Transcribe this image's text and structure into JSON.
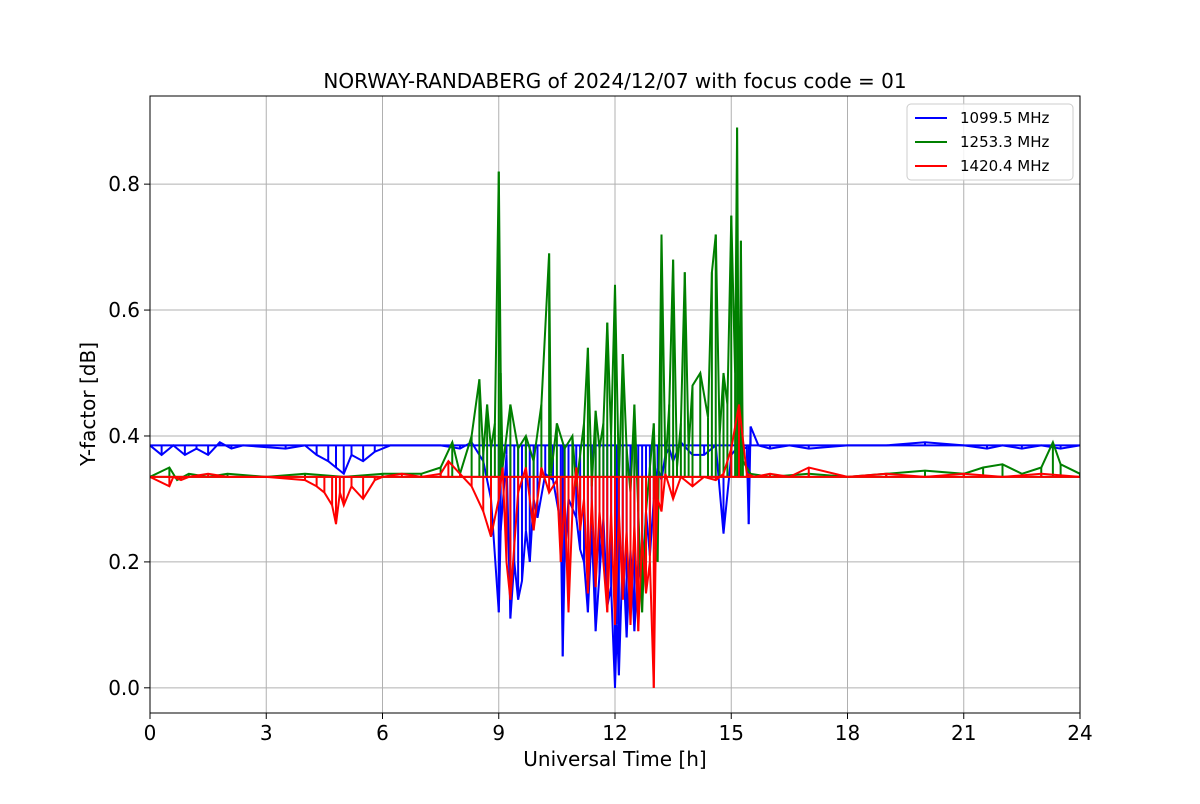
{
  "chart_data": {
    "type": "line",
    "title": "NORWAY-RANDABERG of 2024/12/07 with focus code = 01",
    "xlabel": "Universal Time [h]",
    "ylabel": "Y-factor [dB]",
    "xlim": [
      0,
      24
    ],
    "ylim": [
      -0.04,
      0.94
    ],
    "xticks": [
      0,
      3,
      6,
      9,
      12,
      15,
      18,
      21,
      24
    ],
    "yticks": [
      0.0,
      0.2,
      0.4,
      0.6,
      0.8
    ],
    "xtick_labels": [
      "0",
      "3",
      "6",
      "9",
      "12",
      "15",
      "18",
      "21",
      "24"
    ],
    "ytick_labels": [
      "0.0",
      "0.2",
      "0.4",
      "0.6",
      "0.8"
    ],
    "grid": true,
    "legend_position": "top-right",
    "series": [
      {
        "name": "1099.5 MHz",
        "color": "#0000ff",
        "baseline": 0.385,
        "x": [
          0,
          0.3,
          0.6,
          0.9,
          1.2,
          1.5,
          1.8,
          2.1,
          2.4,
          3.5,
          4.0,
          4.3,
          4.6,
          4.8,
          5.0,
          5.2,
          5.5,
          5.8,
          6.2,
          7.5,
          8.0,
          8.3,
          8.6,
          8.8,
          9.0,
          9.05,
          9.2,
          9.3,
          9.4,
          9.5,
          9.6,
          9.7,
          9.8,
          9.9,
          10.0,
          10.2,
          10.4,
          10.6,
          10.65,
          10.7,
          10.8,
          11.0,
          11.1,
          11.2,
          11.3,
          11.4,
          11.5,
          11.6,
          11.7,
          11.8,
          11.9,
          12.0,
          12.05,
          12.1,
          12.2,
          12.3,
          12.4,
          12.5,
          12.6,
          12.7,
          12.8,
          12.9,
          13.0,
          13.1,
          13.2,
          13.3,
          13.4,
          13.5,
          13.7,
          14.0,
          14.3,
          14.6,
          14.8,
          15.0,
          15.2,
          15.4,
          15.45,
          15.5,
          15.7,
          16.0,
          16.5,
          17.0,
          18.0,
          19.0,
          20.0,
          21.0,
          21.6,
          22.0,
          22.5,
          23.0,
          23.5,
          24.0
        ],
        "y": [
          0.385,
          0.37,
          0.385,
          0.37,
          0.38,
          0.37,
          0.39,
          0.38,
          0.385,
          0.38,
          0.385,
          0.37,
          0.36,
          0.35,
          0.34,
          0.37,
          0.36,
          0.375,
          0.385,
          0.385,
          0.38,
          0.39,
          0.36,
          0.3,
          0.12,
          0.25,
          0.37,
          0.11,
          0.2,
          0.14,
          0.17,
          0.25,
          0.2,
          0.3,
          0.27,
          0.34,
          0.33,
          0.26,
          0.05,
          0.2,
          0.3,
          0.27,
          0.22,
          0.2,
          0.12,
          0.25,
          0.09,
          0.18,
          0.27,
          0.13,
          0.16,
          0.0,
          0.1,
          0.02,
          0.22,
          0.08,
          0.22,
          0.09,
          0.2,
          0.15,
          0.28,
          0.21,
          0.3,
          0.35,
          0.33,
          0.37,
          0.38,
          0.36,
          0.39,
          0.37,
          0.37,
          0.385,
          0.245,
          0.37,
          0.385,
          0.38,
          0.26,
          0.415,
          0.385,
          0.38,
          0.385,
          0.38,
          0.385,
          0.385,
          0.39,
          0.385,
          0.38,
          0.385,
          0.38,
          0.385,
          0.38,
          0.385
        ]
      },
      {
        "name": "1253.3 MHz",
        "color": "#008000",
        "baseline": 0.335,
        "x": [
          0,
          0.5,
          0.7,
          1.0,
          1.5,
          2.0,
          3.0,
          4.0,
          5.0,
          6.0,
          7.0,
          7.5,
          7.8,
          8.0,
          8.3,
          8.5,
          8.6,
          8.7,
          8.8,
          8.9,
          9.0,
          9.05,
          9.1,
          9.3,
          9.5,
          9.7,
          9.9,
          10.1,
          10.3,
          10.35,
          10.5,
          10.7,
          10.9,
          11.0,
          11.2,
          11.3,
          11.4,
          11.5,
          11.6,
          11.7,
          11.8,
          11.9,
          12.0,
          12.1,
          12.2,
          12.3,
          12.4,
          12.5,
          12.6,
          12.7,
          12.8,
          12.9,
          13.0,
          13.1,
          13.2,
          13.3,
          13.4,
          13.5,
          13.6,
          13.7,
          13.8,
          13.9,
          14.0,
          14.2,
          14.4,
          14.5,
          14.6,
          14.7,
          14.8,
          14.9,
          15.0,
          15.1,
          15.15,
          15.2,
          15.25,
          15.3,
          15.5,
          16.0,
          17.0,
          18.0,
          19.0,
          20.0,
          21.0,
          21.5,
          22.0,
          22.5,
          23.0,
          23.3,
          23.5,
          24.0
        ],
        "y": [
          0.335,
          0.35,
          0.33,
          0.34,
          0.335,
          0.34,
          0.335,
          0.34,
          0.335,
          0.34,
          0.34,
          0.35,
          0.39,
          0.34,
          0.4,
          0.49,
          0.37,
          0.45,
          0.38,
          0.42,
          0.82,
          0.5,
          0.35,
          0.45,
          0.38,
          0.4,
          0.36,
          0.45,
          0.69,
          0.34,
          0.42,
          0.38,
          0.4,
          0.32,
          0.42,
          0.54,
          0.32,
          0.44,
          0.38,
          0.42,
          0.58,
          0.4,
          0.64,
          0.33,
          0.53,
          0.38,
          0.31,
          0.45,
          0.28,
          0.12,
          0.28,
          0.35,
          0.42,
          0.2,
          0.72,
          0.35,
          0.45,
          0.68,
          0.35,
          0.42,
          0.66,
          0.38,
          0.48,
          0.5,
          0.43,
          0.66,
          0.72,
          0.4,
          0.5,
          0.45,
          0.75,
          0.5,
          0.89,
          0.34,
          0.71,
          0.36,
          0.34,
          0.335,
          0.34,
          0.335,
          0.34,
          0.345,
          0.34,
          0.35,
          0.355,
          0.34,
          0.35,
          0.39,
          0.355,
          0.34
        ]
      },
      {
        "name": "1420.4 MHz",
        "color": "#ff0000",
        "baseline": 0.335,
        "x": [
          0,
          0.5,
          0.6,
          0.8,
          1.0,
          1.5,
          2.0,
          3.0,
          4.0,
          4.3,
          4.5,
          4.7,
          4.8,
          4.9,
          5.0,
          5.2,
          5.5,
          5.8,
          6.0,
          6.5,
          7.0,
          7.5,
          7.7,
          8.0,
          8.3,
          8.6,
          8.8,
          9.0,
          9.1,
          9.2,
          9.3,
          9.5,
          9.7,
          9.9,
          10.1,
          10.3,
          10.5,
          10.6,
          10.7,
          10.8,
          10.9,
          11.0,
          11.1,
          11.2,
          11.3,
          11.4,
          11.5,
          11.6,
          11.7,
          11.8,
          11.9,
          12.0,
          12.1,
          12.2,
          12.3,
          12.4,
          12.5,
          12.6,
          12.7,
          12.8,
          12.9,
          13.0,
          13.05,
          13.1,
          13.2,
          13.3,
          13.5,
          13.7,
          14.0,
          14.3,
          14.6,
          14.8,
          15.0,
          15.2,
          15.4,
          15.6,
          16.0,
          16.5,
          17.0,
          18.0,
          19.0,
          20.0,
          21.0,
          22.0,
          23.0,
          24.0
        ],
        "y": [
          0.335,
          0.32,
          0.335,
          0.33,
          0.335,
          0.34,
          0.335,
          0.335,
          0.33,
          0.32,
          0.31,
          0.29,
          0.26,
          0.31,
          0.29,
          0.32,
          0.3,
          0.33,
          0.335,
          0.34,
          0.335,
          0.34,
          0.36,
          0.34,
          0.32,
          0.28,
          0.24,
          0.3,
          0.35,
          0.2,
          0.14,
          0.31,
          0.35,
          0.25,
          0.35,
          0.31,
          0.33,
          0.2,
          0.3,
          0.12,
          0.28,
          0.35,
          0.25,
          0.3,
          0.15,
          0.3,
          0.16,
          0.28,
          0.2,
          0.12,
          0.28,
          0.1,
          0.28,
          0.14,
          0.25,
          0.1,
          0.26,
          0.09,
          0.24,
          0.15,
          0.2,
          0.0,
          0.22,
          0.3,
          0.28,
          0.34,
          0.3,
          0.335,
          0.32,
          0.335,
          0.33,
          0.34,
          0.38,
          0.45,
          0.34,
          0.335,
          0.34,
          0.335,
          0.35,
          0.335,
          0.34,
          0.335,
          0.34,
          0.335,
          0.34,
          0.335
        ]
      }
    ]
  }
}
